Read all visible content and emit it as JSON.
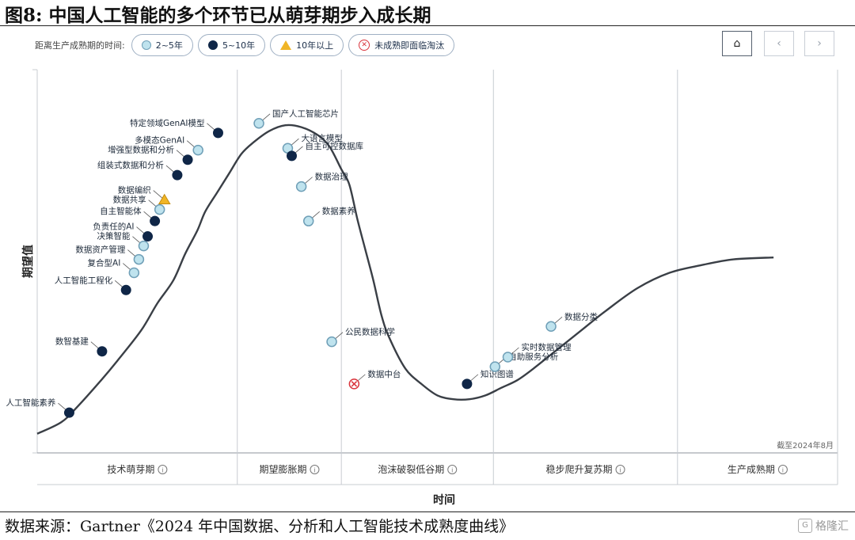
{
  "figure": {
    "title": "图8:  中国人工智能的多个环节已从萌芽期步入成长期",
    "source": "数据来源：Gartner《2024 年中国数据、分析和人工智能技术成熟度曲线》",
    "watermark": "格隆汇"
  },
  "legend": {
    "label": "距离生产成熟期的时间:",
    "items": [
      {
        "label": "2~5年",
        "marker": "light-circle"
      },
      {
        "label": "5~10年",
        "marker": "dark-circle"
      },
      {
        "label": "10年以上",
        "marker": "yellow-triangle"
      },
      {
        "label": "未成熟即面临淘汰",
        "marker": "red-x-circle"
      }
    ]
  },
  "nav": {
    "home_icon": "house-icon",
    "prev_icon": "chevron-left-icon",
    "next_icon": "chevron-right-icon",
    "home": "⌂",
    "prev": "‹",
    "next": "›"
  },
  "chart_data": {
    "type": "scatter",
    "xlabel": "时间",
    "ylabel": "期望值",
    "note": "截至2024年8月",
    "grid": false,
    "phases": [
      {
        "label": "技术萌芽期",
        "range": [
          0,
          25
        ]
      },
      {
        "label": "期望膨胀期",
        "range": [
          25,
          38
        ]
      },
      {
        "label": "泡沫破裂低谷期",
        "range": [
          38,
          57
        ]
      },
      {
        "label": "稳步爬升复苏期",
        "range": [
          57,
          80
        ]
      },
      {
        "label": "生产成熟期",
        "range": [
          80,
          100
        ]
      }
    ],
    "xlim": [
      0,
      100
    ],
    "ylim": [
      0,
      100
    ],
    "curve": [
      [
        0,
        5
      ],
      [
        3,
        8
      ],
      [
        5,
        12
      ],
      [
        8,
        19
      ],
      [
        10,
        24
      ],
      [
        13,
        32
      ],
      [
        15,
        39
      ],
      [
        17,
        45
      ],
      [
        18.5,
        52
      ],
      [
        20,
        58
      ],
      [
        21,
        63
      ],
      [
        22.5,
        68
      ],
      [
        24,
        73
      ],
      [
        25.5,
        78
      ],
      [
        27,
        81
      ],
      [
        29,
        84
      ],
      [
        31,
        85.5
      ],
      [
        33,
        85
      ],
      [
        35,
        83
      ],
      [
        36.5,
        80
      ],
      [
        38,
        74
      ],
      [
        39,
        70
      ],
      [
        40,
        61
      ],
      [
        41,
        53
      ],
      [
        42,
        45
      ],
      [
        43,
        36
      ],
      [
        44,
        30
      ],
      [
        46,
        22
      ],
      [
        48,
        18
      ],
      [
        50,
        15
      ],
      [
        52,
        14
      ],
      [
        54,
        14
      ],
      [
        56,
        15
      ],
      [
        58,
        17
      ],
      [
        60,
        19
      ],
      [
        62,
        22
      ],
      [
        65,
        27
      ],
      [
        68,
        32
      ],
      [
        71,
        37
      ],
      [
        75,
        43
      ],
      [
        79,
        47
      ],
      [
        83,
        49
      ],
      [
        87,
        50.5
      ],
      [
        92,
        51
      ]
    ],
    "markers": [
      {
        "label": "人工智能素养",
        "type": "dark",
        "x": 4,
        "y": 10.5
      },
      {
        "label": "数智基建",
        "type": "dark",
        "x": 8.1,
        "y": 26.5
      },
      {
        "label": "人工智能工程化",
        "type": "dark",
        "x": 11.1,
        "y": 42.5
      },
      {
        "label": "复合型AI",
        "type": "light",
        "x": 12.1,
        "y": 47
      },
      {
        "label": "数据资产管理",
        "type": "light",
        "x": 12.7,
        "y": 50.5
      },
      {
        "label": "决策智能",
        "type": "light",
        "x": 13.3,
        "y": 54
      },
      {
        "label": "负责任的AI",
        "type": "dark",
        "x": 13.8,
        "y": 56.5
      },
      {
        "label": "自主智能体",
        "type": "dark",
        "x": 14.7,
        "y": 60.5
      },
      {
        "label": "数据共享",
        "type": "light",
        "x": 15.3,
        "y": 63.5
      },
      {
        "label": "数据编织",
        "type": "triangle",
        "x": 15.9,
        "y": 66
      },
      {
        "label": "组装式数据和分析",
        "type": "dark",
        "x": 17.5,
        "y": 72.5
      },
      {
        "label": "增强型数据和分析",
        "type": "dark",
        "x": 18.8,
        "y": 76.5
      },
      {
        "label": "多模态GenAI",
        "type": "light",
        "x": 20.1,
        "y": 79
      },
      {
        "label": "特定领域GenAI模型",
        "type": "dark",
        "x": 22.6,
        "y": 83.5
      },
      {
        "label": "国产人工智能芯片",
        "type": "light",
        "x": 27.7,
        "y": 86
      },
      {
        "label": "大语言模型",
        "type": "light",
        "x": 31.3,
        "y": 79.5
      },
      {
        "label": "自主可控数据库",
        "type": "dark",
        "x": 31.8,
        "y": 77.5
      },
      {
        "label": "数据治理",
        "type": "light",
        "x": 33,
        "y": 69.5
      },
      {
        "label": "数据素养",
        "type": "light",
        "x": 33.9,
        "y": 60.5
      },
      {
        "label": "公民数据科学",
        "type": "light",
        "x": 36.8,
        "y": 29
      },
      {
        "label": "数据中台",
        "type": "cross",
        "x": 39.6,
        "y": 18
      },
      {
        "label": "知识图谱",
        "type": "dark",
        "x": 53.7,
        "y": 18
      },
      {
        "label": "自助服务分析",
        "type": "light",
        "x": 57.2,
        "y": 22.5
      },
      {
        "label": "实时数据管理",
        "type": "light",
        "x": 58.8,
        "y": 25
      },
      {
        "label": "数据分类",
        "type": "light",
        "x": 64.2,
        "y": 33
      }
    ]
  }
}
